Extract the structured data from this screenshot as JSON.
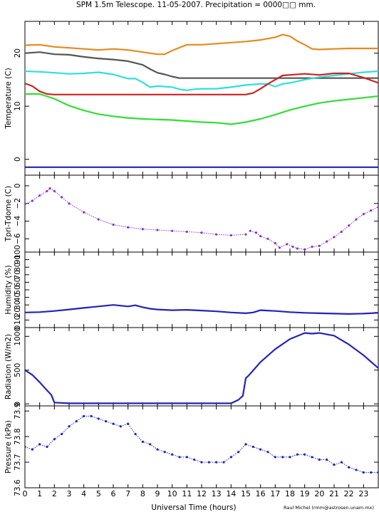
{
  "title": "SPM 1.5m Telescope. 11-05-2007. Precipitation = 0000□□ mm.",
  "xlabel": "Universal Time (hours)",
  "credit": "Raul Michel (rmm@astrosen.unam.mx)",
  "x_ticks": [
    "0",
    "1",
    "2",
    "3",
    "4",
    "5",
    "6",
    "7",
    "8",
    "9",
    "10",
    "11",
    "12",
    "13",
    "14",
    "15",
    "16",
    "17",
    "18",
    "19",
    "20",
    "21",
    "22",
    "23"
  ],
  "colors": {
    "orange": "#e8891c",
    "gray": "#555555",
    "cyan": "#33dddd",
    "red": "#cc2222",
    "green": "#33dd33",
    "blue": "#2222bb",
    "purple": "#8833cc"
  },
  "chart_data": [
    {
      "type": "line",
      "ylabel": "Temperature (C)",
      "ylim": [
        -3,
        26
      ],
      "yticks": [
        "0",
        "10",
        "20"
      ],
      "x_range": [
        0,
        24
      ],
      "series": [
        {
          "color_key": "orange",
          "x": [
            0,
            1,
            2,
            3,
            4,
            5,
            6,
            7,
            8,
            9,
            9.5,
            10,
            11,
            12,
            13,
            14,
            15,
            16,
            17,
            17.5,
            18,
            18.5,
            19,
            19.5,
            20,
            21,
            22,
            23,
            24
          ],
          "y": [
            21.5,
            21.6,
            21.2,
            21,
            20.8,
            20.6,
            20.8,
            20.6,
            20.2,
            19.8,
            19.8,
            20.5,
            21.6,
            21.6,
            21.8,
            22,
            22.2,
            22.5,
            23,
            23.5,
            23.2,
            22.3,
            21.6,
            20.8,
            20.7,
            20.8,
            20.9,
            20.9,
            20.9
          ]
        },
        {
          "color_key": "gray",
          "x": [
            0,
            1,
            2,
            3,
            4,
            5,
            6,
            7,
            8,
            8.5,
            9,
            9.5,
            10,
            10.5,
            11,
            12,
            13,
            14,
            15,
            16,
            17,
            18,
            19,
            20,
            21,
            22,
            23,
            24
          ],
          "y": [
            20,
            20.2,
            19.8,
            19.7,
            19.3,
            19,
            18.8,
            18.5,
            17.8,
            17,
            16.3,
            16,
            15.6,
            15.3,
            15.3,
            15.3,
            15.3,
            15.3,
            15.3,
            15.3,
            15.3,
            15.3,
            15.3,
            15.3,
            15.3,
            15.3,
            15.3,
            15.3
          ]
        },
        {
          "color_key": "cyan",
          "x": [
            0,
            1,
            2,
            3,
            4,
            5,
            6,
            7,
            7.5,
            8,
            8.5,
            9,
            10,
            10.5,
            11,
            11.5,
            12,
            13,
            14,
            15,
            16,
            16.5,
            17,
            17.5,
            18,
            19,
            20,
            21,
            22,
            23,
            24
          ],
          "y": [
            16.6,
            16.5,
            16.3,
            16.1,
            16.2,
            16.4,
            16,
            15.2,
            15.2,
            14.5,
            13.6,
            13.8,
            13.6,
            13.2,
            13,
            13.2,
            13.3,
            13.3,
            13.6,
            14,
            14.2,
            14.2,
            13.7,
            14.2,
            14.4,
            15,
            15.5,
            15.8,
            16.1,
            16.4,
            16.6
          ]
        },
        {
          "color_key": "red",
          "x": [
            0,
            0.5,
            1,
            1.5,
            2,
            3,
            4,
            5,
            6,
            7,
            8,
            9,
            10,
            11,
            12,
            13,
            14,
            15,
            15.5,
            16,
            16.5,
            17,
            17.5,
            18,
            19,
            20,
            21,
            22,
            23,
            24
          ],
          "y": [
            14.3,
            13.8,
            12.8,
            12.3,
            12.2,
            12.2,
            12.2,
            12.2,
            12.2,
            12.2,
            12.2,
            12.2,
            12.2,
            12.2,
            12.2,
            12.2,
            12.2,
            12.2,
            12.5,
            13.3,
            14.2,
            15,
            15.8,
            15.9,
            16.1,
            15.9,
            16.2,
            16.2,
            15.4,
            14.4
          ]
        },
        {
          "color_key": "green",
          "x": [
            0,
            1,
            2,
            3,
            4,
            5,
            6,
            7,
            8,
            9,
            10,
            11,
            12,
            13,
            14,
            15,
            16,
            17,
            18,
            19,
            20,
            21,
            22,
            23,
            24
          ],
          "y": [
            12.3,
            12.3,
            11.4,
            10.1,
            9.2,
            8.5,
            8.1,
            7.8,
            7.6,
            7.5,
            7.4,
            7.2,
            7,
            6.9,
            6.6,
            7,
            7.6,
            8.4,
            9.3,
            10,
            10.6,
            11,
            11.3,
            11.6,
            11.9
          ]
        },
        {
          "color_key": "blue",
          "x": [
            0,
            24
          ],
          "y": [
            -1.5,
            -1.5
          ]
        }
      ]
    },
    {
      "type": "scatter",
      "ylabel": "Tpri-Tdome (C)",
      "ylim": [
        -7.5,
        1.2
      ],
      "yticks": [
        "0",
        "−2",
        "−4",
        "−6"
      ],
      "x_range": [
        0,
        24
      ],
      "series": [
        {
          "color_key": "purple",
          "x": [
            0,
            0.5,
            1,
            1.5,
            1.7,
            2,
            2.5,
            3,
            4,
            5,
            6,
            7,
            8,
            9,
            10,
            11,
            12,
            13,
            14,
            15
          ],
          "y": [
            -2.1,
            -1.7,
            -1.1,
            -0.6,
            -0.3,
            -0.6,
            -1.3,
            -2,
            -3,
            -3.8,
            -4.4,
            -4.7,
            -4.9,
            -5,
            -5.1,
            -5.2,
            -5.3,
            -5.5,
            -5.6,
            -5.5
          ]
        },
        {
          "color_key": "purple",
          "x": [
            15.3,
            15.7,
            16,
            16.5,
            17,
            17.3,
            17.8,
            18.2,
            18.5,
            19,
            19.5,
            20,
            20.5,
            21,
            21.5,
            22,
            22.5,
            23,
            23.5,
            24
          ],
          "y": [
            -5.1,
            -5.3,
            -5.7,
            -6,
            -6.5,
            -7,
            -6.6,
            -6.9,
            -7.1,
            -7.2,
            -6.9,
            -6.8,
            -6.3,
            -5.8,
            -5.2,
            -4.5,
            -3.8,
            -3.2,
            -2.8,
            -2.4
          ]
        }
      ]
    },
    {
      "type": "line",
      "ylabel": "Humidity (%)",
      "ylim": [
        0,
        100
      ],
      "yticks": [
        "0",
        "10",
        "20",
        "30",
        "40",
        "50",
        "60",
        "70",
        "80",
        "90",
        "100"
      ],
      "x_range": [
        0,
        24
      ],
      "series": [
        {
          "color_key": "blue",
          "x": [
            0,
            1,
            2,
            3,
            4,
            5,
            6,
            7,
            7.5,
            8,
            8.5,
            9,
            10,
            11,
            12,
            13,
            14,
            15,
            15.5,
            16,
            17,
            18,
            19,
            20,
            21,
            22,
            23,
            24
          ],
          "y": [
            20,
            20.5,
            22,
            24,
            26,
            28,
            30,
            28,
            29.5,
            27,
            25,
            24,
            23,
            23.5,
            22.5,
            21.5,
            20,
            19,
            20,
            23,
            22,
            20.5,
            19.5,
            19,
            18.5,
            18,
            18.5,
            19.5
          ]
        }
      ]
    },
    {
      "type": "line",
      "ylabel": "Radiation (W/m2)",
      "ylim": [
        -30,
        1130
      ],
      "yticks": [
        "0",
        "500",
        "1000"
      ],
      "x_range": [
        0,
        24
      ],
      "series": [
        {
          "color_key": "blue",
          "x": [
            0,
            0.5,
            1,
            1.5,
            1.8,
            2,
            3,
            4,
            5,
            6,
            7,
            8,
            9,
            10,
            11,
            12,
            13,
            14,
            14.5,
            14.8,
            15,
            15.2,
            16,
            17,
            18,
            19,
            19.5,
            20,
            21,
            22,
            23,
            24
          ],
          "y": [
            500,
            430,
            320,
            200,
            130,
            20,
            8,
            8,
            8,
            8,
            8,
            8,
            8,
            8,
            8,
            8,
            8,
            8,
            60,
            120,
            380,
            420,
            620,
            810,
            960,
            1050,
            1040,
            1050,
            1010,
            880,
            720,
            530
          ]
        }
      ]
    },
    {
      "type": "scatter",
      "ylabel": "Pressure (kPa)",
      "ylim": [
        73.6,
        73.92
      ],
      "yticks": [
        "73.6",
        "73.7",
        "73.8",
        "73.9"
      ],
      "x_range": [
        0,
        24
      ],
      "series": [
        {
          "color_key": "blue",
          "x": [
            0,
            0.5,
            1,
            1.5,
            2,
            2.5,
            3,
            3.5,
            4,
            4.5,
            5,
            5.5,
            6,
            6.5,
            7,
            7.5,
            8,
            8.5,
            9,
            9.5,
            10,
            10.5,
            11,
            11.5,
            12,
            12.5,
            13,
            13.5,
            14,
            14.5,
            15,
            15.5,
            16,
            16.5,
            17,
            17.5,
            18,
            18.5,
            19,
            19.5,
            20,
            20.5,
            21,
            21.5,
            22,
            22.5,
            23,
            23.5,
            24
          ],
          "y": [
            73.76,
            73.75,
            73.77,
            73.76,
            73.79,
            73.81,
            73.84,
            73.86,
            73.88,
            73.88,
            73.87,
            73.86,
            73.85,
            73.84,
            73.85,
            73.81,
            73.78,
            73.77,
            73.75,
            73.74,
            73.73,
            73.72,
            73.72,
            73.71,
            73.7,
            73.7,
            73.7,
            73.7,
            73.72,
            73.74,
            73.77,
            73.76,
            73.75,
            73.74,
            73.72,
            73.72,
            73.72,
            73.73,
            73.73,
            73.72,
            73.71,
            73.71,
            73.69,
            73.7,
            73.68,
            73.67,
            73.66,
            73.66,
            73.66
          ]
        }
      ]
    }
  ]
}
